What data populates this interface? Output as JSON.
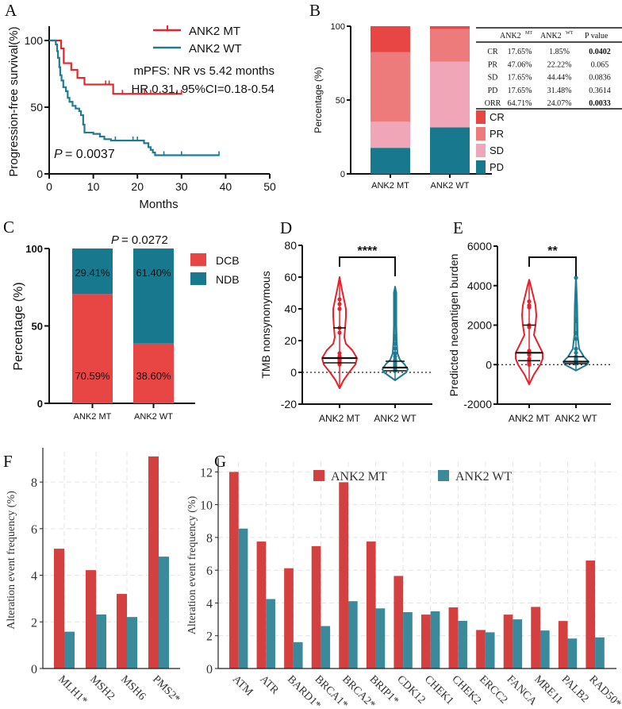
{
  "panel_letters": [
    "A",
    "B",
    "C",
    "D",
    "E",
    "F",
    "G"
  ],
  "colors": {
    "km_mt": "#e5262b",
    "km_wt": "#1e7b92",
    "cr": "#e84545",
    "pr": "#ee7b7b",
    "sd": "#f0a6b6",
    "pd": "#18788e",
    "dcb": "#e84545",
    "ndb": "#18788e",
    "bar_mt": "#d43f3f",
    "bar_wt": "#3b8a9b",
    "violin_mt": "#e8202a",
    "violin_wt": "#1e7b92"
  },
  "chart_data": [
    {
      "panel": "A",
      "type": "line",
      "xlabel": "Months",
      "ylabel": "Progression-free survival(%)",
      "xlim": [
        0,
        50
      ],
      "ylim": [
        0,
        100
      ],
      "xticks": [
        0,
        10,
        20,
        30,
        40,
        50
      ],
      "yticks": [
        0,
        50,
        100
      ],
      "legend": [
        "ANK2 MT",
        "ANK2 WT"
      ],
      "annotations": [
        "mPFS: NR vs 5.42 months",
        "HR 0.31, 95%CI=0.18-0.54",
        "= 0.0037"
      ],
      "p_label": "P",
      "series": [
        {
          "name": "ANK2 MT",
          "steps": [
            [
              0,
              100
            ],
            [
              2.7,
              94
            ],
            [
              3.3,
              83
            ],
            [
              5.0,
              78
            ],
            [
              6.4,
              72
            ],
            [
              8.0,
              67
            ],
            [
              14.5,
              60
            ],
            [
              30,
              60
            ]
          ],
          "censored": [
            12.8,
            13.6,
            16.6,
            19,
            21,
            21.6,
            23,
            29,
            30
          ]
        },
        {
          "name": "ANK2 WT",
          "steps": [
            [
              0,
              100
            ],
            [
              1.5,
              97
            ],
            [
              1.8,
              92
            ],
            [
              2.0,
              87
            ],
            [
              2.3,
              80
            ],
            [
              2.5,
              74
            ],
            [
              2.8,
              70
            ],
            [
              3.2,
              65
            ],
            [
              3.8,
              62
            ],
            [
              4.2,
              57
            ],
            [
              4.6,
              54
            ],
            [
              5.3,
              51
            ],
            [
              6.0,
              49
            ],
            [
              6.8,
              47
            ],
            [
              7.2,
              44
            ],
            [
              7.7,
              37
            ],
            [
              8.0,
              31
            ],
            [
              10,
              30
            ],
            [
              11.5,
              28
            ],
            [
              12.5,
              26
            ],
            [
              14,
              25
            ],
            [
              21.5,
              23
            ],
            [
              22.5,
              20
            ],
            [
              23,
              18
            ],
            [
              23.5,
              16
            ],
            [
              24,
              14
            ],
            [
              38.5,
              14
            ]
          ],
          "censored": [
            15,
            19,
            20,
            26,
            30,
            38.5
          ]
        }
      ]
    },
    {
      "panel": "B",
      "type": "bar",
      "stacked": true,
      "ylabel": "Percentage (%)",
      "ylim": [
        0,
        100
      ],
      "yticks": [
        0,
        50,
        100
      ],
      "categories": [
        "ANK2 MT",
        "ANK2 WT"
      ],
      "series": [
        {
          "name": "PD",
          "values": [
            17.65,
            31.48
          ]
        },
        {
          "name": "SD",
          "values": [
            17.65,
            44.44
          ]
        },
        {
          "name": "PR",
          "values": [
            47.06,
            22.22
          ]
        },
        {
          "name": "CR",
          "values": [
            17.65,
            1.85
          ]
        }
      ],
      "legend": [
        "CR",
        "PR",
        "SD",
        "PD"
      ],
      "table": {
        "headers": [
          "",
          "ANK2",
          "MT",
          "ANK2",
          "WT",
          "P value"
        ],
        "rows": [
          {
            "label": "CR",
            "mt": "17.65%",
            "wt": "1.85%",
            "p": "0.0402",
            "bold": true
          },
          {
            "label": "PR",
            "mt": "47.06%",
            "wt": "22.22%",
            "p": "0.065",
            "bold": false
          },
          {
            "label": "SD",
            "mt": "17.65%",
            "wt": "44.44%",
            "p": "0.0836",
            "bold": false
          },
          {
            "label": "PD",
            "mt": "17.65%",
            "wt": "31.48%",
            "p": "0.3614",
            "bold": false
          },
          {
            "label": "ORR",
            "mt": "64.71%",
            "wt": "24.07%",
            "p": "0.0033",
            "bold": true
          }
        ]
      }
    },
    {
      "panel": "C",
      "type": "bar",
      "stacked": true,
      "title_p": "P",
      "title_rest": "= 0.0272",
      "ylabel": "Percentage (%)",
      "ylim": [
        0,
        100
      ],
      "yticks": [
        0,
        50,
        100
      ],
      "categories": [
        "ANK2 MT",
        "ANK2 WT"
      ],
      "series": [
        {
          "name": "DCB",
          "values": [
            70.59,
            38.6
          ],
          "labels": [
            "70.59%",
            "38.60%"
          ]
        },
        {
          "name": "NDB",
          "values": [
            29.41,
            61.4
          ],
          "labels": [
            "29.41%",
            "61.40%"
          ]
        }
      ]
    },
    {
      "panel": "D",
      "type": "violin",
      "ylabel": "TMB nonsynonymous",
      "ylim": [
        -20,
        80
      ],
      "yticks": [
        -20,
        0,
        20,
        40,
        60,
        80
      ],
      "categories": [
        "ANK2 MT",
        "ANK2 WT"
      ],
      "significance": "****",
      "groups": [
        {
          "name": "ANK2 MT",
          "median": 9,
          "q1": 6,
          "q3": 28,
          "points": [
            46,
            43,
            40,
            28,
            25,
            12,
            10,
            9,
            8,
            7,
            6,
            5
          ]
        },
        {
          "name": "ANK2 WT",
          "median": 3,
          "q1": 1,
          "q3": 7,
          "points": [
            50,
            49,
            23,
            21,
            18,
            15,
            12,
            10,
            8,
            6,
            5,
            4,
            3,
            2,
            1
          ]
        }
      ]
    },
    {
      "panel": "E",
      "type": "violin",
      "ylabel": "Predicted neoantigen burden",
      "ylim": [
        -2000,
        6000
      ],
      "yticks": [
        -2000,
        0,
        2000,
        4000,
        6000
      ],
      "categories": [
        "ANK2 MT",
        "ANK2 WT"
      ],
      "significance": "**",
      "groups": [
        {
          "name": "ANK2 MT",
          "median": 600,
          "q1": 200,
          "q3": 2000,
          "points": [
            3200,
            3000,
            2900,
            2000,
            1900,
            700,
            600,
            500,
            300,
            100,
            0
          ]
        },
        {
          "name": "ANK2 WT",
          "median": 150,
          "q1": 50,
          "q3": 400,
          "points": [
            4400,
            2300,
            2200,
            1600,
            1300,
            800,
            600,
            400,
            300,
            200,
            100,
            50
          ]
        }
      ]
    },
    {
      "panel": "F",
      "type": "bar",
      "ylabel": "Alteration event frequency (%)",
      "ylim": [
        0,
        9.3
      ],
      "yticks": [
        0,
        2,
        4,
        6,
        8
      ],
      "grid": true,
      "categories": [
        "MLH1*",
        "MSH2",
        "MSH6",
        "PMS2*"
      ],
      "series": [
        {
          "name": "ANK2 MT",
          "values": [
            5.14,
            4.22,
            3.2,
            9.1
          ]
        },
        {
          "name": "ANK2 WT",
          "values": [
            1.58,
            2.32,
            2.21,
            4.8
          ]
        }
      ]
    },
    {
      "panel": "G",
      "type": "bar",
      "ylabel": "Alteration event frequency (%)",
      "ylim": [
        0,
        12.6
      ],
      "yticks": [
        0,
        2,
        4,
        6,
        8,
        10,
        12
      ],
      "grid": true,
      "legend_position": "top",
      "categories": [
        "ATM",
        "ATR",
        "BARD1*",
        "BRCA1*",
        "BRCA2*",
        "BRIP1*",
        "CDK12",
        "CHEK1",
        "CHEK2",
        "ERCC2",
        "FANCA",
        "MRE11",
        "PALB2",
        "RAD50*"
      ],
      "series": [
        {
          "name": "ANK2 MT",
          "values": [
            12.0,
            7.75,
            6.12,
            7.47,
            11.37,
            7.75,
            5.65,
            3.29,
            3.73,
            2.35,
            3.29,
            3.76,
            2.9,
            6.59
          ]
        },
        {
          "name": "ANK2 WT",
          "values": [
            8.54,
            4.24,
            1.61,
            2.59,
            4.11,
            3.67,
            3.44,
            3.49,
            2.91,
            2.21,
            3.0,
            2.32,
            1.83,
            1.9
          ]
        }
      ]
    }
  ]
}
